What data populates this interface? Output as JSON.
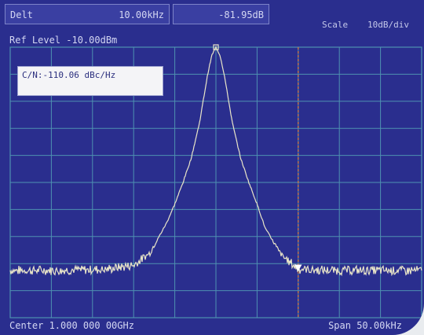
{
  "header": {
    "delta_label": "Delt",
    "delta_freq": "10.00kHz",
    "delta_level": "-81.95dB",
    "scale_label": "Scale",
    "scale_value": "10dB/div"
  },
  "ref_level": "Ref Level -10.00dBm",
  "marker_readout": "C/N:-110.06 dBc/Hz",
  "footer": {
    "center": "Center 1.000 000 00GHz",
    "span": "Span 50.00kHz"
  },
  "colors": {
    "screen_bg": "#2a2e8e",
    "grid": "#4e91b1",
    "trace": "#e9e5c8",
    "delta_marker_line": "#d9773b",
    "text": "#d3d6f2"
  },
  "icons": {
    "reference_marker": "square-marker-icon",
    "delta_marker": "triangle-down-marker-icon"
  },
  "chart_data": {
    "type": "line",
    "title": "",
    "xlabel": "",
    "ylabel": "",
    "x_units": "kHz offset from center",
    "xlim": [
      -25,
      25
    ],
    "ylim": [
      -110,
      -10
    ],
    "grid": true,
    "grid_divisions": {
      "x": 10,
      "y": 10
    },
    "reference_marker": {
      "x": 0.0,
      "y": -10
    },
    "delta_marker": {
      "x": 10.0,
      "y": -91.95
    },
    "series": [
      {
        "x": [
          -25,
          -22,
          -19,
          -16,
          -13,
          -10,
          -8,
          -6,
          -5,
          -4,
          -3,
          -2,
          -1.5,
          -1,
          -0.5,
          0,
          0.5,
          1,
          1.5,
          2,
          3,
          4,
          5,
          6,
          8,
          10,
          13,
          16,
          19,
          22,
          25
        ],
        "values": [
          -92.5,
          -92.5,
          -92.5,
          -92.3,
          -92,
          -90.5,
          -86,
          -75,
          -68,
          -60,
          -51,
          -38,
          -29,
          -20,
          -13,
          -10,
          -13,
          -20,
          -29,
          -38,
          -51,
          -60,
          -68,
          -77,
          -87,
          -92,
          -92.5,
          -92.5,
          -92.5,
          -92.5,
          -92.5
        ]
      }
    ]
  }
}
